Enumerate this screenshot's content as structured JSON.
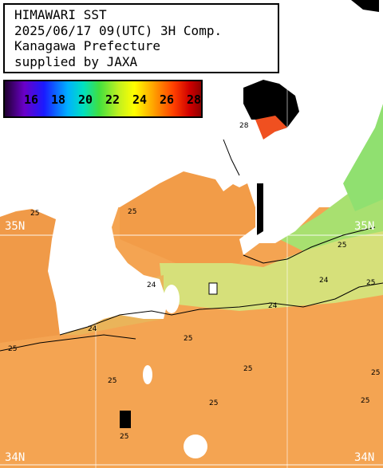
{
  "title": {
    "line1": "HIMAWARI SST",
    "line2": "2025/06/17 09(UTC) 3H Comp.",
    "line3": "Kanagawa Prefecture",
    "line4": "supplied by JAXA"
  },
  "colorbar": {
    "ticks": [
      "16",
      "18",
      "20",
      "22",
      "24",
      "26",
      "28"
    ]
  },
  "grid": {
    "lat_labels": [
      "35N",
      "35N",
      "34N",
      "34N"
    ]
  },
  "contours": {
    "labels": [
      "25",
      "25",
      "24",
      "24",
      "24",
      "24",
      "25",
      "25",
      "25",
      "25",
      "25",
      "25",
      "25",
      "25",
      "25",
      "25",
      "28"
    ]
  },
  "colors": {
    "land": "#ffffff",
    "warm_sea": "#f4a050",
    "mid_sea": "#f0c060",
    "cool_sea": "#c8e070",
    "cooler_sea": "#90e070",
    "no_data": "#000000",
    "hot_sea": "#ff5020"
  }
}
